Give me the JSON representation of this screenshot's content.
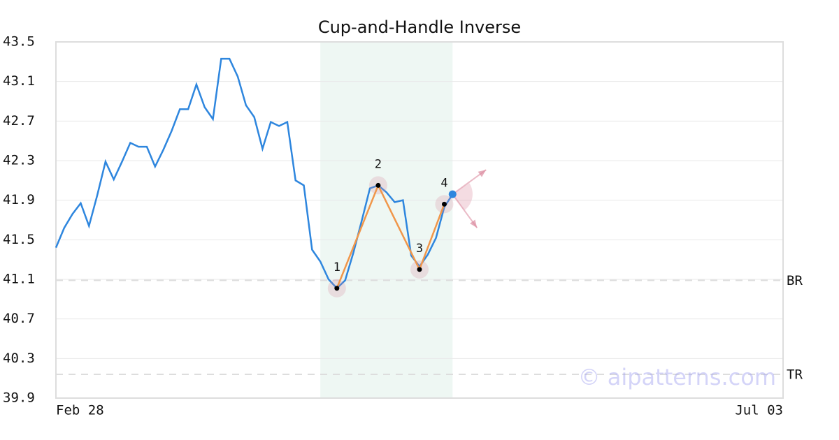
{
  "chart_data": {
    "type": "line",
    "title": "Cup-and-Handle Inverse",
    "categories": [
      "Feb 28",
      null,
      null,
      null,
      null,
      null,
      null,
      null,
      null,
      null,
      null,
      null,
      null,
      null,
      null,
      null,
      null,
      null,
      null,
      null,
      null,
      null,
      null,
      null,
      null,
      null,
      null,
      null,
      null,
      null,
      null,
      null,
      null,
      null,
      null,
      null,
      null,
      null,
      null,
      null,
      null,
      null,
      null,
      null,
      null,
      null,
      null,
      null,
      null,
      null,
      null,
      null,
      null,
      null,
      null,
      null,
      null,
      null,
      null,
      null,
      null,
      null,
      null,
      null,
      null,
      null,
      null,
      null,
      null,
      null,
      null,
      null,
      null,
      null,
      null,
      null,
      null,
      null,
      null,
      null,
      null,
      null,
      null,
      null,
      null,
      null,
      null,
      null,
      "Jul 03"
    ],
    "series": [
      {
        "color": "#2e86de",
        "values": [
          41.42,
          41.62,
          41.76,
          41.87,
          41.64,
          41.95,
          42.29,
          42.11,
          42.29,
          42.48,
          42.44,
          42.44,
          42.24,
          42.41,
          42.6,
          42.82,
          42.82,
          43.07,
          42.84,
          42.72,
          43.33,
          43.33,
          43.15,
          42.86,
          42.74,
          42.42,
          42.69,
          42.65,
          42.69,
          42.1,
          42.05,
          41.4,
          41.28,
          41.1,
          41.01,
          41.09,
          41.37,
          41.69,
          42.02,
          42.05,
          41.98,
          41.88,
          41.9,
          41.34,
          41.23,
          41.35,
          41.52,
          41.83,
          41.96,
          null,
          null,
          null,
          null,
          null,
          null,
          null,
          null,
          null,
          null,
          null,
          null,
          null,
          null,
          null,
          null,
          null,
          null,
          null,
          null,
          null,
          null,
          null,
          null,
          null,
          null,
          null,
          null,
          null,
          null,
          null,
          null,
          null,
          null,
          null,
          null,
          null,
          null,
          null,
          null
        ]
      }
    ],
    "pattern": {
      "color": "#f0964a",
      "points": [
        {
          "x": 34,
          "y": 41.01,
          "label": "1"
        },
        {
          "x": 39,
          "y": 42.05,
          "label": "2"
        },
        {
          "x": 44,
          "y": 41.2,
          "label": "3"
        },
        {
          "x": 47,
          "y": 41.86,
          "label": "4"
        }
      ]
    },
    "highlight": [
      32,
      48
    ],
    "levels": [
      {
        "label": "BR",
        "value": 41.09
      },
      {
        "label": "TR",
        "value": 40.14
      }
    ],
    "ylim": [
      39.9,
      43.5
    ],
    "yticks": [
      {
        "value": 39.9,
        "label": "39.9"
      },
      {
        "value": 40.3,
        "label": "40.3"
      },
      {
        "value": 40.7,
        "label": "40.7"
      },
      {
        "value": 41.1,
        "label": "41.1"
      },
      {
        "value": 41.5,
        "label": "41.5"
      },
      {
        "value": 41.9,
        "label": "41.9"
      },
      {
        "value": 42.3,
        "label": "42.3"
      },
      {
        "value": 42.7,
        "label": "42.7"
      },
      {
        "value": 43.1,
        "label": "43.1"
      },
      {
        "value": 43.5,
        "label": "43.5"
      }
    ],
    "grid": true,
    "watermark": "© aipatterns.com"
  }
}
